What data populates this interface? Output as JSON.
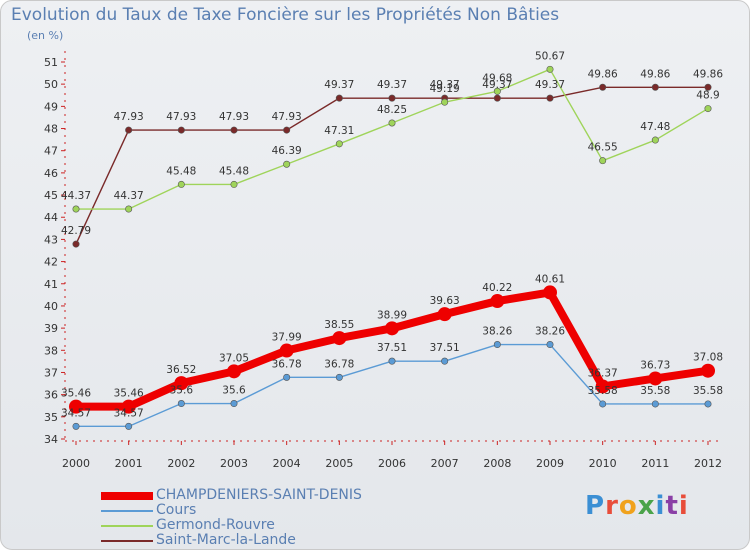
{
  "chart_data": {
    "type": "line",
    "title": "Evolution du Taux de Taxe Foncière sur les Propriétés Non Bâties",
    "subtitle": "(en %)",
    "xlabel": "",
    "ylabel": "",
    "x": [
      "2000",
      "2001",
      "2002",
      "2003",
      "2004",
      "2005",
      "2006",
      "2007",
      "2008",
      "2009",
      "2010",
      "2011",
      "2012"
    ],
    "ylim": [
      34,
      51
    ],
    "yticks": [
      34,
      35,
      36,
      37,
      38,
      39,
      40,
      41,
      42,
      43,
      44,
      45,
      46,
      47,
      48,
      49,
      50,
      51
    ],
    "grid": false,
    "legend_position": "bottom-left",
    "series": [
      {
        "name": "CHAMPDENIERS-SAINT-DENIS",
        "color": "#ee0000",
        "values": [
          35.46,
          35.46,
          36.52,
          37.05,
          37.99,
          38.55,
          38.99,
          39.63,
          40.22,
          40.61,
          36.37,
          36.73,
          37.08
        ],
        "labels": [
          "35.46",
          "35.46",
          "36.52",
          "37.05",
          "37.99",
          "38.55",
          "38.99",
          "39.63",
          "40.22",
          "40.61",
          "36.37",
          "36.73",
          "37.08"
        ]
      },
      {
        "name": "Cours",
        "color": "#5b9bd5",
        "values": [
          34.57,
          34.57,
          35.6,
          35.6,
          36.78,
          36.78,
          37.51,
          37.51,
          38.26,
          38.26,
          35.58,
          35.58,
          35.58
        ],
        "labels": [
          "34.57",
          "34.57",
          "35.6",
          "35.6",
          "36.78",
          "36.78",
          "37.51",
          "37.51",
          "38.26",
          "38.26",
          "35.58",
          "35.58",
          "35.58"
        ]
      },
      {
        "name": "Germond-Rouvre",
        "color": "#9fd45a",
        "values": [
          44.37,
          44.37,
          45.48,
          45.48,
          46.39,
          47.31,
          48.25,
          49.19,
          49.68,
          50.67,
          46.55,
          47.48,
          48.9
        ],
        "labels": [
          "44.37",
          "44.37",
          "45.48",
          "45.48",
          "46.39",
          "47.31",
          "48.25",
          "49.19",
          "49.68",
          "50.67",
          "46.55",
          "47.48",
          "48.9"
        ]
      },
      {
        "name": "Saint-Marc-la-Lande",
        "color": "#7a2a2a",
        "values": [
          42.79,
          47.93,
          47.93,
          47.93,
          47.93,
          49.37,
          49.37,
          49.37,
          49.37,
          49.37,
          49.86,
          49.86,
          49.86
        ],
        "labels": [
          "42.79",
          "47.93",
          "47.93",
          "47.93",
          "47.93",
          "49.37",
          "49.37",
          "49.37",
          "49.37",
          "49.37",
          "49.86",
          "49.86",
          "49.86"
        ]
      }
    ]
  },
  "branding": {
    "letters": [
      "P",
      "r",
      "o",
      "x",
      "i",
      "t",
      "i"
    ]
  }
}
